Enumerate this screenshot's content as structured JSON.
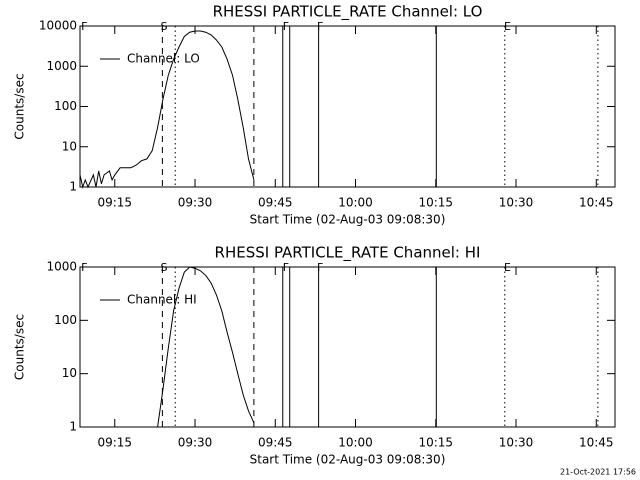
{
  "chart_data": [
    {
      "type": "line",
      "title": "RHESSI PARTICLE_RATE Channel: LO",
      "xlabel": "Start Time (02-Aug-03 09:08:30)",
      "ylabel": "Counts/sec",
      "log_y": true,
      "xlim": [
        8.5,
        108.5
      ],
      "ylim": [
        1,
        10000
      ],
      "xticks": [
        {
          "value": 15,
          "label": "09:15"
        },
        {
          "value": 30,
          "label": "09:30"
        },
        {
          "value": 45,
          "label": "09:45"
        },
        {
          "value": 60,
          "label": "10:00"
        },
        {
          "value": 75,
          "label": "10:15"
        },
        {
          "value": 90,
          "label": "10:30"
        },
        {
          "value": 105,
          "label": "10:45"
        }
      ],
      "yticks": [
        1,
        10,
        100,
        1000,
        10000
      ],
      "series": [
        {
          "name": "Channel: LO",
          "color": "#000000",
          "x": [
            8.5,
            9,
            9.5,
            10,
            11,
            11.5,
            12,
            12.5,
            13,
            14,
            14.5,
            15,
            16,
            17,
            18,
            19,
            20,
            21,
            22,
            23,
            24,
            25,
            26,
            27,
            28,
            29,
            30,
            31,
            32,
            33,
            34,
            35,
            36,
            37,
            38,
            39,
            40,
            41
          ],
          "values": [
            2,
            1,
            1.5,
            1,
            2,
            1,
            2.5,
            1.2,
            2,
            2.5,
            1.5,
            2,
            3,
            3,
            3,
            3.5,
            4.5,
            5,
            8,
            30,
            150,
            600,
            1500,
            3000,
            5500,
            7000,
            7500,
            7500,
            7000,
            6000,
            4500,
            3000,
            1500,
            600,
            150,
            30,
            5,
            1.5
          ]
        }
      ],
      "lines": [
        {
          "x": 23.9,
          "style": "dashed"
        },
        {
          "x": 26.3,
          "style": "dotted"
        },
        {
          "x": 41,
          "style": "dashed"
        },
        {
          "x": 46.4,
          "style": "solid"
        },
        {
          "x": 47.7,
          "style": "solid"
        },
        {
          "x": 53.1,
          "style": "solid"
        },
        {
          "x": 75.1,
          "style": "solid"
        },
        {
          "x": 87.9,
          "style": "dotted"
        },
        {
          "x": 105.3,
          "style": "dotted"
        }
      ],
      "flags": [
        {
          "x": 9.3,
          "label": "F"
        },
        {
          "x": 24.2,
          "label": "S"
        },
        {
          "x": 47,
          "label": "F"
        },
        {
          "x": 53.4,
          "label": "F"
        },
        {
          "x": 88.4,
          "label": "E"
        }
      ]
    },
    {
      "type": "line",
      "title": "RHESSI PARTICLE_RATE Channel: HI",
      "xlabel": "Start Time (02-Aug-03 09:08:30)",
      "ylabel": "Counts/sec",
      "log_y": true,
      "xlim": [
        8.5,
        108.5
      ],
      "ylim": [
        1,
        1000
      ],
      "xticks": [
        {
          "value": 15,
          "label": "09:15"
        },
        {
          "value": 30,
          "label": "09:30"
        },
        {
          "value": 45,
          "label": "09:45"
        },
        {
          "value": 60,
          "label": "10:00"
        },
        {
          "value": 75,
          "label": "10:15"
        },
        {
          "value": 90,
          "label": "10:30"
        },
        {
          "value": 105,
          "label": "10:45"
        }
      ],
      "yticks": [
        1,
        10,
        100,
        1000
      ],
      "series": [
        {
          "name": "Channel: HI",
          "color": "#000000",
          "x": [
            23,
            24,
            25,
            26,
            27,
            28,
            29,
            30,
            31,
            32,
            33,
            34,
            35,
            36,
            37,
            38,
            39,
            40,
            41
          ],
          "values": [
            1,
            5,
            30,
            150,
            400,
            800,
            1000,
            950,
            850,
            700,
            500,
            300,
            150,
            60,
            25,
            10,
            4,
            2,
            1.2
          ]
        }
      ],
      "lines": [
        {
          "x": 23.9,
          "style": "dashed"
        },
        {
          "x": 26.3,
          "style": "dotted"
        },
        {
          "x": 41,
          "style": "dashed"
        },
        {
          "x": 46.4,
          "style": "solid"
        },
        {
          "x": 47.7,
          "style": "solid"
        },
        {
          "x": 53.1,
          "style": "solid"
        },
        {
          "x": 75.1,
          "style": "solid"
        },
        {
          "x": 87.9,
          "style": "dotted"
        },
        {
          "x": 105.3,
          "style": "dotted"
        }
      ],
      "flags": [
        {
          "x": 9.3,
          "label": "F"
        },
        {
          "x": 24.2,
          "label": "S"
        },
        {
          "x": 47,
          "label": "F"
        },
        {
          "x": 53.4,
          "label": "F"
        },
        {
          "x": 88.4,
          "label": "E"
        }
      ]
    }
  ],
  "timestamp": "21-Oct-2021 17:56"
}
